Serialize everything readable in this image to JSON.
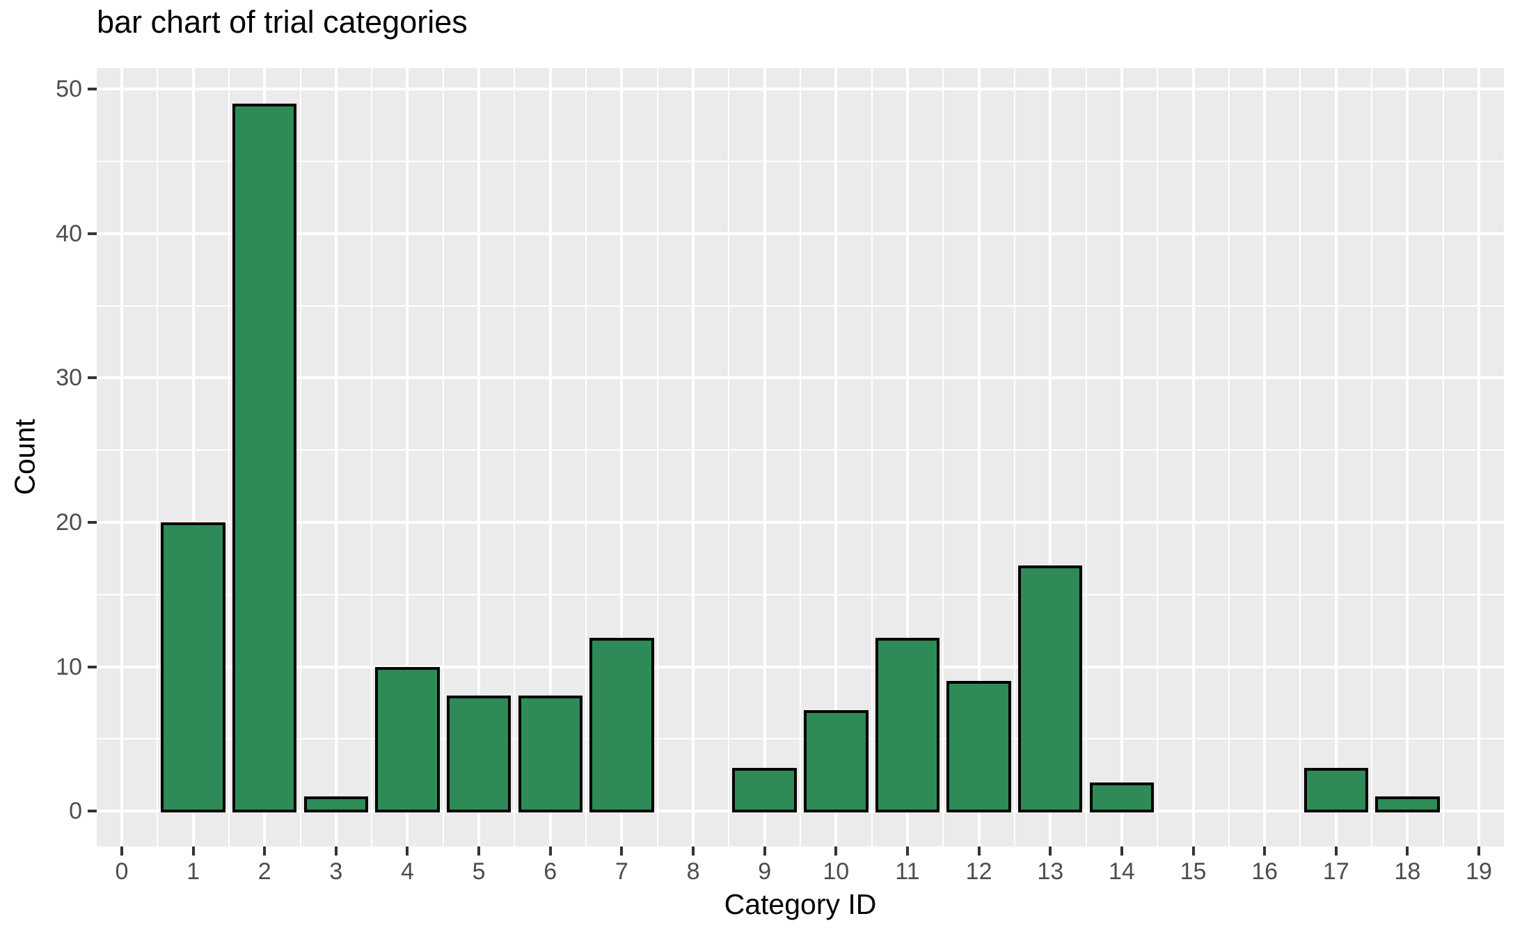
{
  "chart_data": {
    "type": "bar",
    "title": "bar chart of trial categories",
    "xlabel": "Category ID",
    "ylabel": "Count",
    "categories": [
      0,
      1,
      2,
      3,
      4,
      5,
      6,
      7,
      8,
      9,
      10,
      11,
      12,
      13,
      14,
      15,
      16,
      17,
      18,
      19
    ],
    "values": [
      0,
      20,
      49,
      1,
      10,
      8,
      8,
      12,
      0,
      3,
      7,
      12,
      9,
      17,
      2,
      0,
      0,
      3,
      1,
      0
    ],
    "x_ticks": [
      0,
      1,
      2,
      3,
      4,
      5,
      6,
      7,
      8,
      9,
      10,
      11,
      12,
      13,
      14,
      15,
      16,
      17,
      18,
      19
    ],
    "y_ticks": [
      0,
      10,
      20,
      30,
      40,
      50
    ],
    "xlim": [
      -0.35,
      19.35
    ],
    "ylim": [
      -2.45,
      51.45
    ],
    "bar_width": 0.9,
    "grid": "major+minor",
    "legend": "none",
    "colors": {
      "bar_fill": "#2E8B57",
      "bar_stroke": "#000000",
      "panel_bg": "#EBEBEB",
      "gridline": "#FFFFFF",
      "tick_text": "#4D4D4D",
      "tick_mark": "#333333",
      "axis_text": "#000000",
      "background": "#FFFFFF"
    }
  }
}
